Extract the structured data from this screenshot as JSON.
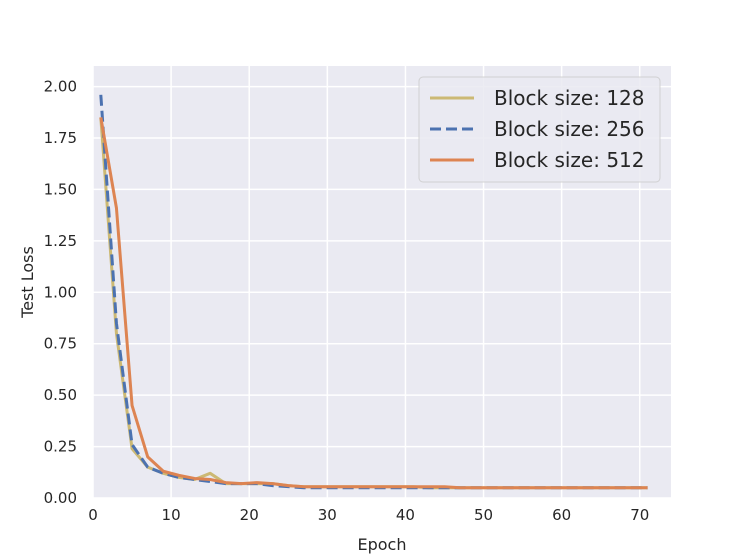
{
  "chart_data": {
    "type": "line",
    "xlabel": "Epoch",
    "ylabel": "Test Loss",
    "xlim": [
      0,
      74
    ],
    "ylim": [
      0,
      2.1
    ],
    "xticks": [
      0,
      10,
      20,
      30,
      40,
      50,
      60,
      70
    ],
    "yticks": [
      0.0,
      0.25,
      0.5,
      0.75,
      1.0,
      1.25,
      1.5,
      1.75,
      2.0
    ],
    "xtick_labels": [
      "0",
      "10",
      "20",
      "30",
      "40",
      "50",
      "60",
      "70"
    ],
    "ytick_labels": [
      "0.00",
      "0.25",
      "0.50",
      "0.75",
      "1.00",
      "1.25",
      "1.50",
      "1.75",
      "2.00"
    ],
    "grid": true,
    "legend_position": "top-right",
    "series": [
      {
        "name": "Block size: 128",
        "color": "#ccb974",
        "dash": "solid",
        "x": [
          1,
          3,
          5,
          7,
          9,
          11,
          13,
          15,
          17,
          19,
          21,
          23,
          25,
          27,
          29,
          31,
          33,
          35,
          37,
          39,
          41,
          43,
          45,
          47,
          49,
          51,
          53,
          55,
          57,
          59,
          61,
          63,
          65,
          67,
          69,
          71
        ],
        "y": [
          1.85,
          0.8,
          0.24,
          0.15,
          0.12,
          0.1,
          0.09,
          0.12,
          0.07,
          0.07,
          0.07,
          0.07,
          0.06,
          0.055,
          0.055,
          0.055,
          0.055,
          0.055,
          0.055,
          0.055,
          0.055,
          0.05,
          0.05,
          0.05,
          0.05,
          0.05,
          0.05,
          0.05,
          0.05,
          0.05,
          0.05,
          0.05,
          0.05,
          0.05,
          0.05,
          0.05
        ]
      },
      {
        "name": "Block size: 256",
        "color": "#4c72b0",
        "dash": "dashed",
        "x": [
          1,
          3,
          5,
          7,
          9,
          11,
          13,
          15,
          17,
          19,
          21,
          23,
          25,
          27,
          29,
          31,
          33,
          35,
          37,
          39,
          41,
          43,
          45,
          47,
          49,
          51,
          53,
          55,
          57,
          59,
          61,
          63,
          65,
          67,
          69,
          71
        ],
        "y": [
          1.96,
          0.85,
          0.26,
          0.15,
          0.12,
          0.1,
          0.09,
          0.08,
          0.07,
          0.07,
          0.07,
          0.06,
          0.055,
          0.05,
          0.05,
          0.05,
          0.05,
          0.05,
          0.05,
          0.05,
          0.05,
          0.05,
          0.05,
          0.05,
          0.05,
          0.05,
          0.05,
          0.05,
          0.05,
          0.05,
          0.05,
          0.05,
          0.05,
          0.05,
          0.05,
          0.05
        ]
      },
      {
        "name": "Block size: 512",
        "color": "#dd8452",
        "dash": "solid",
        "x": [
          1,
          3,
          5,
          7,
          9,
          11,
          13,
          15,
          17,
          19,
          21,
          23,
          25,
          27,
          29,
          31,
          33,
          35,
          37,
          39,
          41,
          43,
          45,
          47,
          49,
          51,
          53,
          55,
          57,
          59,
          61,
          63,
          65,
          67,
          69,
          71
        ],
        "y": [
          1.85,
          1.41,
          0.45,
          0.2,
          0.13,
          0.11,
          0.095,
          0.09,
          0.075,
          0.07,
          0.075,
          0.07,
          0.06,
          0.055,
          0.055,
          0.055,
          0.055,
          0.055,
          0.055,
          0.055,
          0.055,
          0.055,
          0.055,
          0.05,
          0.05,
          0.05,
          0.05,
          0.05,
          0.05,
          0.05,
          0.05,
          0.05,
          0.05,
          0.05,
          0.05,
          0.05
        ]
      }
    ]
  },
  "colors": {
    "plot_background": "#eaeaf2",
    "grid": "#ffffff",
    "text": "#262626"
  }
}
